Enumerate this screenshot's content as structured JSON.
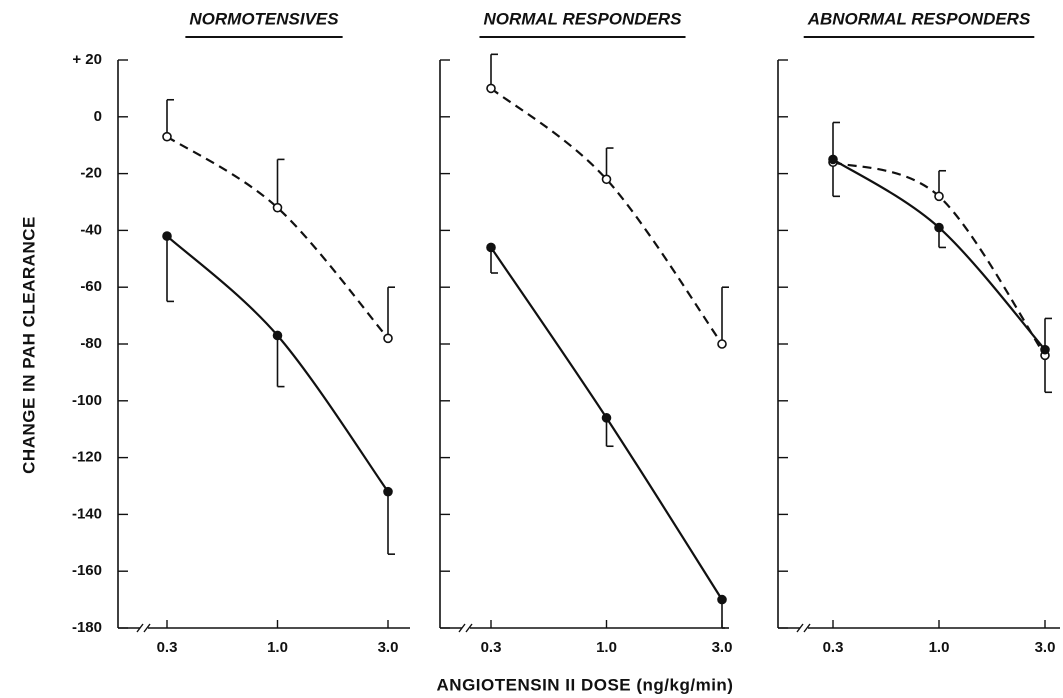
{
  "chart_data": [
    {
      "type": "line",
      "title": "NORMOTENSIVES",
      "ylabel": "CHANGE IN PAH CLEARANCE",
      "categories": [
        "0.3",
        "1.0",
        "3.0"
      ],
      "ylim": [
        -180,
        20
      ],
      "yticks": [
        {
          "value": 20,
          "label": "+ 20"
        },
        0,
        -20,
        -40,
        -60,
        -80,
        -100,
        -120,
        -140,
        -160,
        -180
      ],
      "tick_labels": true,
      "series": [
        {
          "color": "#111",
          "marker": "open",
          "dashed": true,
          "values": [
            -7,
            -32,
            -78
          ],
          "errors": [
            13,
            17,
            18
          ],
          "error_direction": [
            "up",
            "up",
            "up"
          ]
        },
        {
          "color": "#111",
          "marker": "filled",
          "dashed": false,
          "values": [
            -42,
            -77,
            -132
          ],
          "errors": [
            23,
            18,
            22
          ],
          "error_direction": [
            "down",
            "down",
            "down"
          ]
        }
      ]
    },
    {
      "type": "line",
      "title": "NORMAL RESPONDERS",
      "xlabel": "ANGIOTENSIN II DOSE (ng/kg/min)",
      "categories": [
        "0.3",
        "1.0",
        "3.0"
      ],
      "ylim": [
        -180,
        20
      ],
      "yticks": [
        20,
        0,
        -20,
        -40,
        -60,
        -80,
        -100,
        -120,
        -140,
        -160,
        -180
      ],
      "tick_labels": false,
      "series": [
        {
          "color": "#111",
          "marker": "open",
          "dashed": true,
          "values": [
            10,
            -22,
            -80
          ],
          "errors": [
            12,
            11,
            20
          ],
          "error_direction": [
            "up",
            "up",
            "up"
          ]
        },
        {
          "color": "#111",
          "marker": "filled",
          "dashed": false,
          "values": [
            -46,
            -106,
            -170
          ],
          "errors": [
            9,
            10,
            10
          ],
          "error_direction": [
            "down",
            "down",
            "down"
          ]
        }
      ]
    },
    {
      "type": "line",
      "title": "ABNORMAL RESPONDERS",
      "categories": [
        "0.3",
        "1.0",
        "3.0"
      ],
      "ylim": [
        -180,
        20
      ],
      "yticks": [
        20,
        0,
        -20,
        -40,
        -60,
        -80,
        -100,
        -120,
        -140,
        -160,
        -180
      ],
      "tick_labels": false,
      "series": [
        {
          "color": "#111",
          "marker": "open",
          "dashed": true,
          "values": [
            -16,
            -28,
            -84
          ],
          "errors": [
            12,
            9,
            13
          ],
          "error_direction": [
            "down",
            "up",
            "down"
          ]
        },
        {
          "color": "#111",
          "marker": "filled",
          "dashed": false,
          "values": [
            -15,
            -39,
            -82
          ],
          "errors": [
            13,
            7,
            11
          ],
          "error_direction": [
            "up",
            "down",
            "up"
          ]
        }
      ]
    }
  ]
}
